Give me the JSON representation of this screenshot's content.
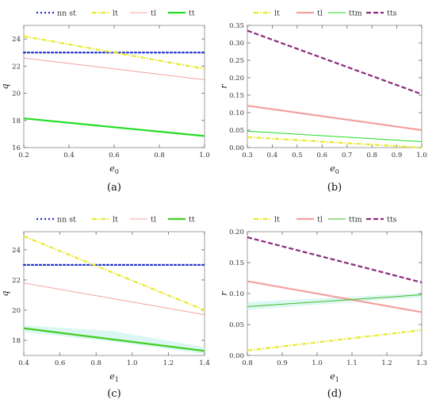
{
  "chart_data": [
    {
      "panel_label": "(a)",
      "type": "line",
      "xlabel": "e",
      "xlabel_sub": "0",
      "ylabel": "q",
      "xlim": [
        0.2,
        1.0
      ],
      "ylim": [
        16,
        25
      ],
      "xticks": [
        0.2,
        0.4,
        0.6,
        0.8,
        1.0
      ],
      "xtick_labels": [
        "0.2",
        "0.4",
        "0.6",
        "0.8",
        "1.0"
      ],
      "yticks": [
        16,
        18,
        20,
        22,
        24
      ],
      "ytick_labels": [
        "16",
        "18",
        "20",
        "22",
        "24"
      ],
      "legend": [
        "nn st",
        "lt",
        "tl",
        "tt"
      ],
      "series": [
        {
          "name": "nn st",
          "color": "#2233cc",
          "style": "dotted",
          "x": [
            0.2,
            1.0
          ],
          "y": [
            23.0,
            23.0
          ]
        },
        {
          "name": "lt",
          "color": "#e8e830",
          "style": "dashdot",
          "x": [
            0.2,
            1.0
          ],
          "y": [
            24.2,
            21.8
          ]
        },
        {
          "name": "tl",
          "color": "#f4a0a0",
          "style": "solid",
          "x": [
            0.2,
            1.0
          ],
          "y": [
            22.6,
            21.0
          ]
        },
        {
          "name": "tt",
          "color": "#22dd22",
          "style": "solid",
          "x": [
            0.2,
            1.0
          ],
          "y": [
            18.15,
            16.85
          ]
        }
      ]
    },
    {
      "panel_label": "(b)",
      "type": "line",
      "xlabel": "e",
      "xlabel_sub": "0",
      "ylabel": "r",
      "xlim": [
        0.3,
        1.0
      ],
      "ylim": [
        0,
        0.35
      ],
      "xticks": [
        0.3,
        0.4,
        0.5,
        0.6,
        0.7,
        0.8,
        0.9,
        1.0
      ],
      "xtick_labels": [
        "0.3",
        "0.4",
        "0.5",
        "0.6",
        "0.7",
        "0.8",
        "0.9",
        "1.0"
      ],
      "yticks": [
        0,
        0.05,
        0.1,
        0.15,
        0.2,
        0.25,
        0.3,
        0.35
      ],
      "ytick_labels": [
        "0.00",
        "0.05",
        "0.10",
        "0.15",
        "0.20",
        "0.25",
        "0.30",
        "0.35"
      ],
      "legend": [
        "lt",
        "tl",
        "ttm",
        "tts"
      ],
      "series": [
        {
          "name": "lt",
          "color": "#e8e830",
          "style": "dashdot",
          "x": [
            0.3,
            1.0
          ],
          "y": [
            0.03,
            0.0
          ]
        },
        {
          "name": "tl",
          "color": "#f4a0a0",
          "style": "solid",
          "x": [
            0.3,
            1.0
          ],
          "y": [
            0.12,
            0.05
          ]
        },
        {
          "name": "ttm",
          "color": "#22dd22",
          "style": "solid",
          "x": [
            0.3,
            1.0
          ],
          "y": [
            0.047,
            0.017
          ]
        },
        {
          "name": "tts",
          "color": "#8a2a7a",
          "style": "dashed",
          "x": [
            0.3,
            1.0
          ],
          "y": [
            0.335,
            0.153
          ]
        }
      ]
    },
    {
      "panel_label": "(c)",
      "type": "line",
      "xlabel": "e",
      "xlabel_sub": "1",
      "ylabel": "q",
      "xlim": [
        0.4,
        1.4
      ],
      "ylim": [
        17,
        25.2
      ],
      "xticks": [
        0.4,
        0.6,
        0.8,
        1.0,
        1.2,
        1.4
      ],
      "xtick_labels": [
        "0.4",
        "0.6",
        "0.8",
        "1.0",
        "1.2",
        "1.4"
      ],
      "yticks": [
        18,
        20,
        22,
        24
      ],
      "ytick_labels": [
        "18",
        "20",
        "22",
        "24"
      ],
      "legend": [
        "nn st",
        "lt",
        "tl",
        "tt"
      ],
      "series": [
        {
          "name": "nn st",
          "color": "#2233cc",
          "style": "dotted",
          "x": [
            0.4,
            1.4
          ],
          "y": [
            23.0,
            23.0
          ]
        },
        {
          "name": "lt",
          "color": "#e8e830",
          "style": "dashdot",
          "x": [
            0.4,
            1.4
          ],
          "y": [
            24.9,
            20.0
          ]
        },
        {
          "name": "tl",
          "color": "#f4a0a0",
          "style": "solid",
          "x": [
            0.4,
            1.4
          ],
          "y": [
            21.8,
            19.7
          ]
        },
        {
          "name": "tt",
          "color": "#44cc22",
          "style": "solid",
          "x": [
            0.4,
            1.4
          ],
          "y": [
            18.8,
            17.3
          ]
        }
      ]
    },
    {
      "panel_label": "(d)",
      "type": "line",
      "xlabel": "e",
      "xlabel_sub": "1",
      "ylabel": "r",
      "xlim": [
        0.8,
        1.3
      ],
      "ylim": [
        0,
        0.2
      ],
      "xticks": [
        0.8,
        0.9,
        1.0,
        1.1,
        1.2,
        1.3
      ],
      "xtick_labels": [
        "0.8",
        "0.9",
        "1.0",
        "1.1",
        "1.2",
        "1.3"
      ],
      "yticks": [
        0,
        0.05,
        0.1,
        0.15,
        0.2
      ],
      "ytick_labels": [
        "0.00",
        "0.05",
        "0.10",
        "0.15",
        "0.20"
      ],
      "legend": [
        "lt",
        "tl",
        "ttm",
        "tts"
      ],
      "series": [
        {
          "name": "lt",
          "color": "#e8e830",
          "style": "dashdot",
          "x": [
            0.8,
            1.3
          ],
          "y": [
            0.008,
            0.041
          ]
        },
        {
          "name": "tl",
          "color": "#f4a0a0",
          "style": "solid",
          "x": [
            0.8,
            1.3
          ],
          "y": [
            0.12,
            0.07
          ]
        },
        {
          "name": "ttm",
          "color": "#44bb22",
          "style": "solid",
          "x": [
            0.8,
            1.3
          ],
          "y": [
            0.079,
            0.098
          ]
        },
        {
          "name": "tts",
          "color": "#8a2a7a",
          "style": "dashed",
          "x": [
            0.8,
            1.3
          ],
          "y": [
            0.191,
            0.118
          ]
        }
      ]
    }
  ]
}
